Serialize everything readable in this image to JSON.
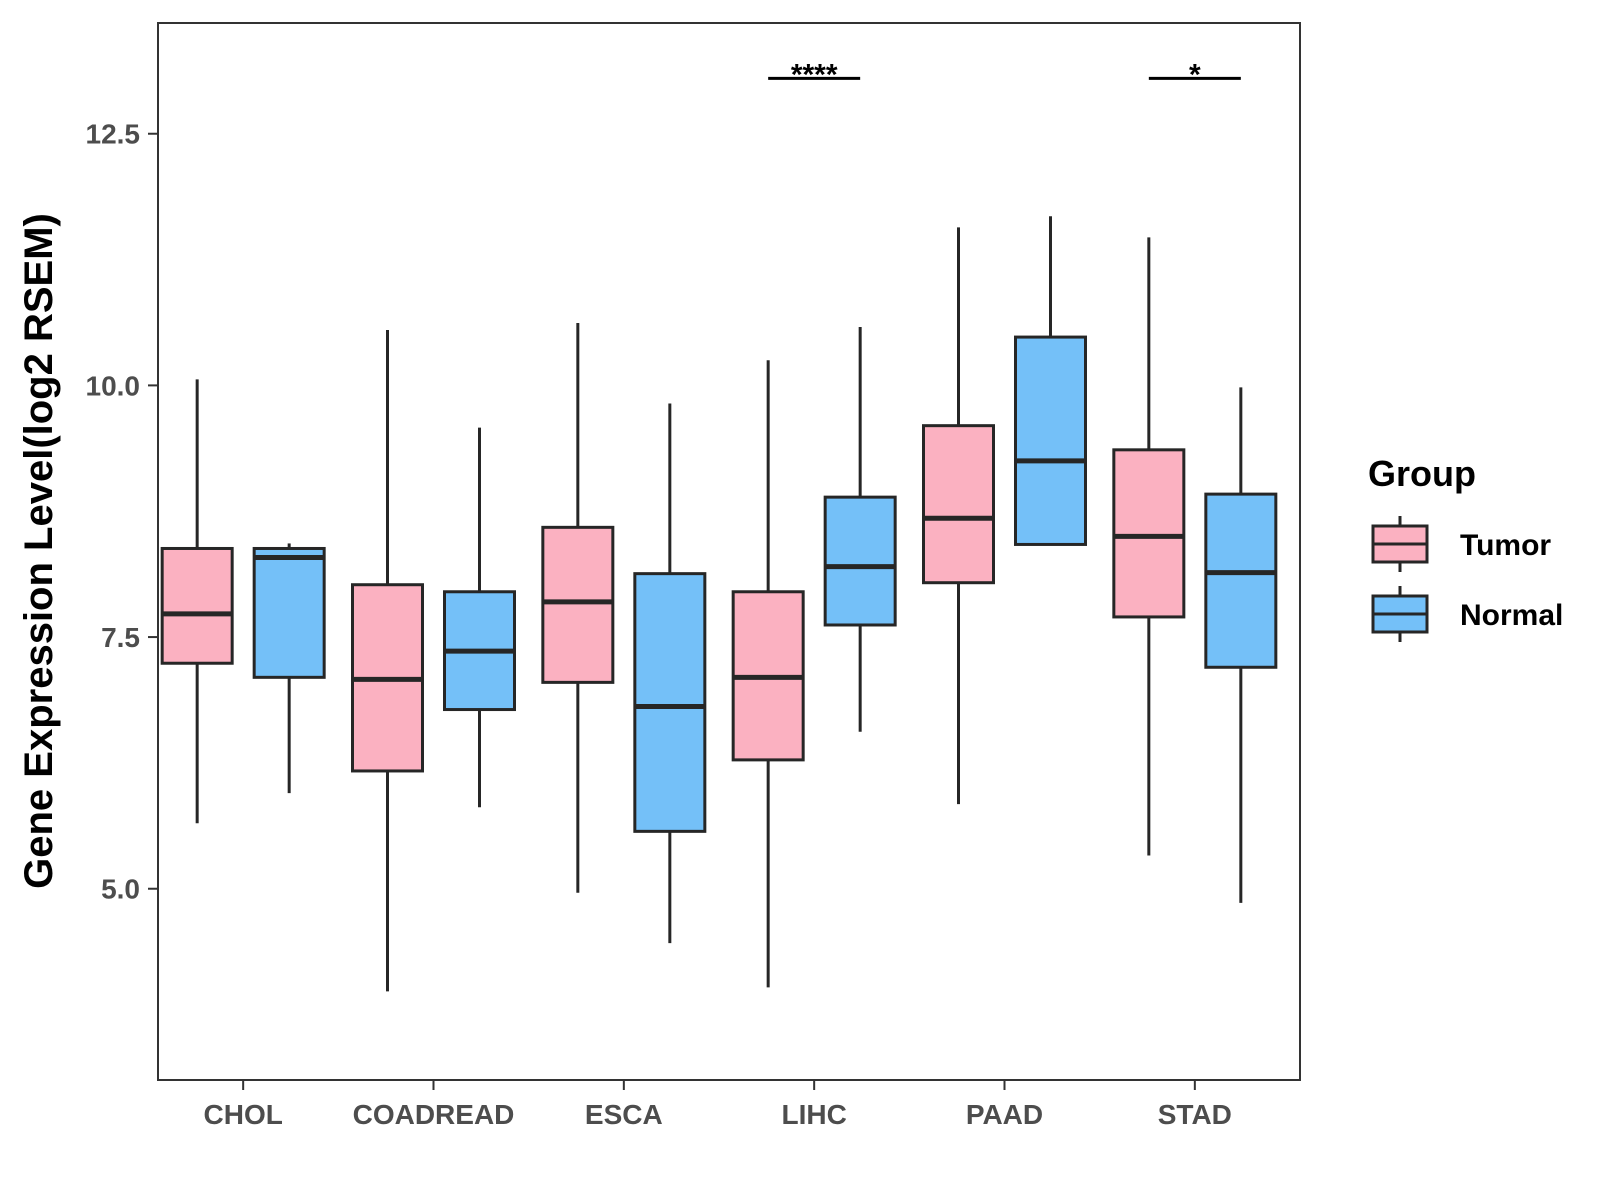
{
  "chart_data": {
    "type": "boxplot",
    "title": "",
    "xlabel": "",
    "ylabel": "Gene Expression Level(log2 RSEM)",
    "ylim": [
      3.1,
      13.6
    ],
    "yticks": [
      "5.0",
      "7.5",
      "10.0",
      "12.5"
    ],
    "categories": [
      "CHOL",
      "COADREAD",
      "ESCA",
      "LIHC",
      "PAAD",
      "STAD"
    ],
    "legend": {
      "title": "Group",
      "position": "right",
      "entries": [
        "Tumor",
        "Normal"
      ]
    },
    "colors": {
      "Tumor": "#fbb1c1",
      "Normal": "#74c0f8",
      "outline": "#262626"
    },
    "series": [
      {
        "name": "Tumor",
        "boxes": [
          {
            "category": "CHOL",
            "min": 5.65,
            "q1": 7.24,
            "median": 7.73,
            "q3": 8.38,
            "max": 10.06
          },
          {
            "category": "COADREAD",
            "min": 3.98,
            "q1": 6.17,
            "median": 7.08,
            "q3": 8.02,
            "max": 10.55
          },
          {
            "category": "ESCA",
            "min": 4.96,
            "q1": 7.05,
            "median": 7.85,
            "q3": 8.59,
            "max": 10.62
          },
          {
            "category": "LIHC",
            "min": 4.02,
            "q1": 6.28,
            "median": 7.1,
            "q3": 7.95,
            "max": 10.25
          },
          {
            "category": "PAAD",
            "min": 5.84,
            "q1": 8.04,
            "median": 8.68,
            "q3": 9.6,
            "max": 11.57
          },
          {
            "category": "STAD",
            "min": 5.33,
            "q1": 7.7,
            "median": 8.5,
            "q3": 9.36,
            "max": 11.47
          }
        ]
      },
      {
        "name": "Normal",
        "boxes": [
          {
            "category": "CHOL",
            "min": 5.95,
            "q1": 7.1,
            "median": 8.29,
            "q3": 8.38,
            "max": 8.43
          },
          {
            "category": "COADREAD",
            "min": 5.81,
            "q1": 6.78,
            "median": 7.36,
            "q3": 7.95,
            "max": 9.58
          },
          {
            "category": "ESCA",
            "min": 4.46,
            "q1": 5.57,
            "median": 6.81,
            "q3": 8.13,
            "max": 9.82
          },
          {
            "category": "LIHC",
            "min": 6.56,
            "q1": 7.62,
            "median": 8.2,
            "q3": 8.89,
            "max": 10.58
          },
          {
            "category": "PAAD",
            "min": 8.42,
            "q1": 8.42,
            "median": 9.25,
            "q3": 10.48,
            "max": 11.68
          },
          {
            "category": "STAD",
            "min": 4.86,
            "q1": 7.2,
            "median": 8.14,
            "q3": 8.92,
            "max": 9.98
          }
        ]
      }
    ],
    "annotations": [
      {
        "category": "LIHC",
        "label": "****",
        "y": 13.05
      },
      {
        "category": "STAD",
        "label": "*",
        "y": 13.05
      }
    ],
    "grid": false
  }
}
